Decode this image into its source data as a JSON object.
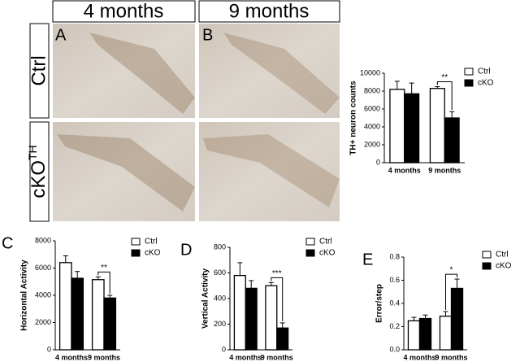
{
  "micrographs": {
    "columns": [
      "4 months",
      "9 months"
    ],
    "rows": [
      {
        "label": "Ctrl"
      },
      {
        "label": "cKO",
        "sup": "TH"
      }
    ],
    "panels": [
      "A",
      "B"
    ]
  },
  "chart_data": [
    {
      "type": "bar",
      "ylabel": "TH+ neuron counts",
      "categories": [
        "4 months",
        "9 months"
      ],
      "series": [
        {
          "name": "Ctrl",
          "color": "#ffffff",
          "values": [
            8200,
            8300
          ],
          "errors": [
            900,
            200
          ]
        },
        {
          "name": "cKO",
          "color": "#000000",
          "values": [
            7700,
            5000
          ],
          "errors": [
            1200,
            700
          ]
        }
      ],
      "ylim": [
        0,
        10000
      ],
      "yticks": [
        0,
        2000,
        4000,
        6000,
        8000,
        10000
      ],
      "annotation": "**"
    },
    {
      "type": "bar",
      "panel_label": "C",
      "ylabel": "Horizontal Activity",
      "categories": [
        "4 months",
        "9 months"
      ],
      "series": [
        {
          "name": "Ctrl",
          "color": "#ffffff",
          "values": [
            6400,
            5150
          ],
          "errors": [
            500,
            200
          ]
        },
        {
          "name": "cKO",
          "color": "#000000",
          "values": [
            5250,
            3800
          ],
          "errors": [
            500,
            200
          ]
        }
      ],
      "ylim": [
        0,
        8000
      ],
      "yticks": [
        0,
        2000,
        4000,
        6000,
        8000
      ],
      "annotation": "**"
    },
    {
      "type": "bar",
      "panel_label": "D",
      "ylabel": "Vertical Activity",
      "categories": [
        "4 months",
        "9 months"
      ],
      "series": [
        {
          "name": "Ctrl",
          "color": "#ffffff",
          "values": [
            580,
            500
          ],
          "errors": [
            100,
            25
          ]
        },
        {
          "name": "cKO",
          "color": "#000000",
          "values": [
            480,
            170
          ],
          "errors": [
            60,
            40
          ]
        }
      ],
      "ylim": [
        0,
        800
      ],
      "yticks": [
        0,
        200,
        400,
        600,
        800
      ],
      "annotation": "***"
    },
    {
      "type": "bar",
      "panel_label": "E",
      "ylabel": "Error/step",
      "categories": [
        "4 months",
        "9 months"
      ],
      "series": [
        {
          "name": "Ctrl",
          "color": "#ffffff",
          "values": [
            0.25,
            0.29
          ],
          "errors": [
            0.03,
            0.04
          ]
        },
        {
          "name": "cKO",
          "color": "#000000",
          "values": [
            0.27,
            0.53
          ],
          "errors": [
            0.03,
            0.08
          ]
        }
      ],
      "ylim": [
        0,
        0.8
      ],
      "yticks": [
        {
          "value": 0,
          "label": "0.0"
        },
        0.2,
        0.4,
        0.6,
        0.8
      ],
      "annotation": "*"
    }
  ]
}
